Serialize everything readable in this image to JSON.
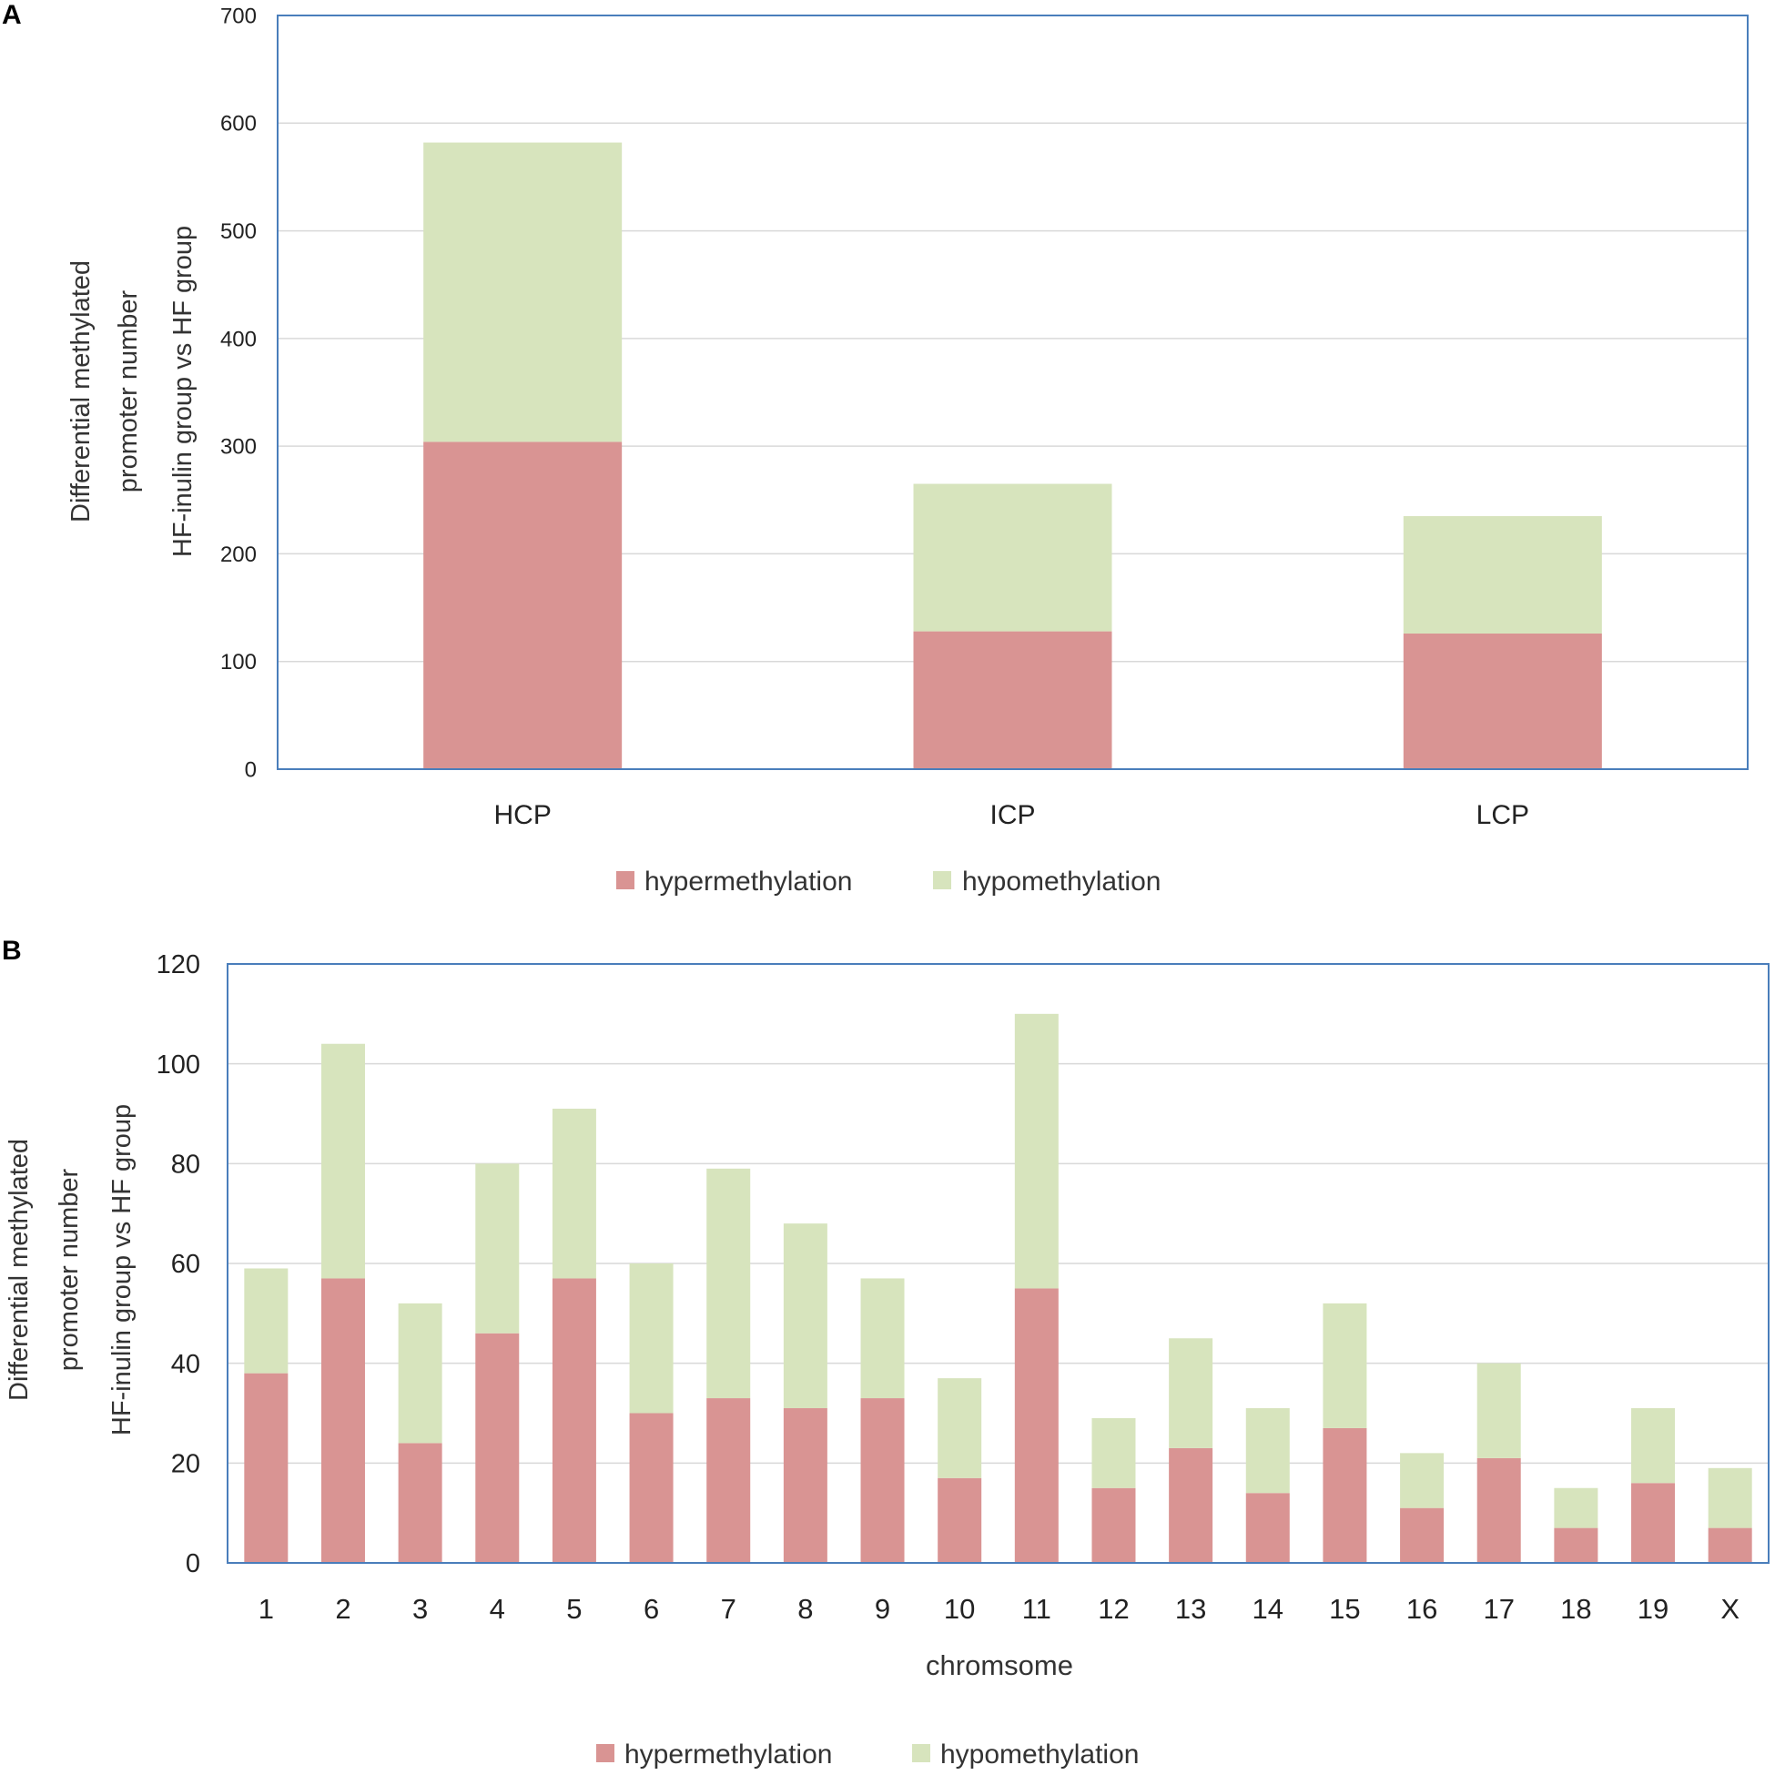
{
  "colors": {
    "hyper": "#d99493",
    "hypo": "#d7e4bd",
    "frame": "#4a7ebb",
    "grid": "#d9d9d9"
  },
  "chart_data": [
    {
      "panel": "A",
      "type": "bar",
      "stacked": true,
      "categories": [
        "HCP",
        "ICP",
        "LCP"
      ],
      "series": [
        {
          "name": "hypermethylation",
          "values": [
            304,
            128,
            126
          ]
        },
        {
          "name": "hypomethylation",
          "values": [
            278,
            137,
            109
          ]
        }
      ],
      "ylabel": [
        "Differential methylated",
        "promoter number",
        "HF-inulin group vs HF group"
      ],
      "xlabel": "",
      "ylim": [
        0,
        700
      ],
      "yticks": [
        0,
        100,
        200,
        300,
        400,
        500,
        600,
        700
      ],
      "grid": true,
      "legend": "bottom-center"
    },
    {
      "panel": "B",
      "type": "bar",
      "stacked": true,
      "categories": [
        "1",
        "2",
        "3",
        "4",
        "5",
        "6",
        "7",
        "8",
        "9",
        "10",
        "11",
        "12",
        "13",
        "14",
        "15",
        "16",
        "17",
        "18",
        "19",
        "X"
      ],
      "series": [
        {
          "name": "hypermethylation",
          "values": [
            38,
            57,
            24,
            46,
            57,
            30,
            33,
            31,
            33,
            17,
            55,
            15,
            23,
            14,
            27,
            11,
            21,
            7,
            16,
            7
          ]
        },
        {
          "name": "hypomethylation",
          "values": [
            21,
            47,
            28,
            34,
            34,
            30,
            46,
            37,
            24,
            20,
            55,
            14,
            22,
            17,
            25,
            11,
            19,
            8,
            15,
            12
          ]
        }
      ],
      "ylabel": [
        "Differential methylated",
        "promoter number",
        "HF-inulin group vs HF group"
      ],
      "xlabel": "chromsome",
      "ylim": [
        0,
        120
      ],
      "yticks": [
        0,
        20,
        40,
        60,
        80,
        100,
        120
      ],
      "grid": true,
      "legend": "bottom-center"
    }
  ]
}
